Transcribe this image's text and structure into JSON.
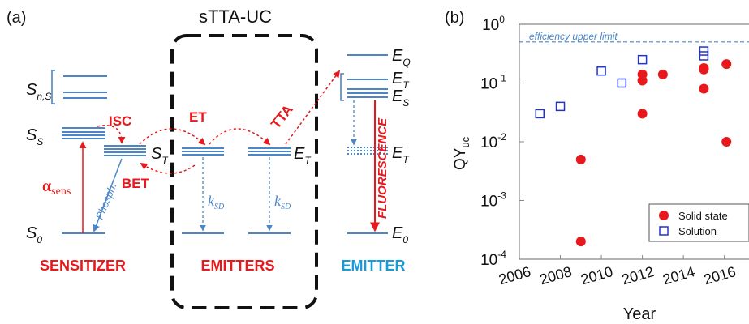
{
  "panel_a": {
    "label": "(a)",
    "box_title": "sTTA-UC",
    "sensitizer": {
      "caption": "SENSITIZER",
      "level_Sn": "S",
      "level_Sn_sub": "n,S",
      "level_SS": "S",
      "level_SS_sub": "S",
      "level_ST": "S",
      "level_ST_sub": "T",
      "level_S0": "S",
      "level_S0_sub": "0"
    },
    "emitters": {
      "caption": "EMITTERS",
      "ksd": "k",
      "ksd_sub": "SD",
      "ET_label": "E",
      "ET_sub": "T"
    },
    "emitter": {
      "caption": "EMITTER",
      "EQ": "E",
      "EQ_sub": "Q",
      "ET": "E",
      "ET_sub": "T",
      "ES": "E",
      "ES_sub": "S",
      "ET2": "E",
      "ET2_sub": "T",
      "E0": "E",
      "E0_sub": "0"
    },
    "arrows": {
      "isc": "ISC",
      "et": "ET",
      "tta": "TTA",
      "bet": "BET",
      "alpha": "α",
      "alpha_sub": "sens",
      "phosph": "Phosph.",
      "fluorescence": "FLUORESCENCE"
    },
    "colors": {
      "red": "#e8191c",
      "blue": "#4a86c8",
      "cyan": "#1a9ad6",
      "black": "#111111"
    }
  },
  "chart_data": {
    "panel_label": "(b)",
    "type": "scatter",
    "title": "",
    "xlabel": "Year",
    "ylabel": "QY",
    "ylabel_sub": "uc",
    "xlim": [
      2006,
      2017.2
    ],
    "ylim_log10": [
      -4,
      0
    ],
    "yscale": "log",
    "x_ticks": [
      "2006",
      "2008",
      "2010",
      "2012",
      "2014",
      "2016"
    ],
    "y_ticks": [
      {
        "base": "10",
        "exp": "0"
      },
      {
        "base": "10",
        "exp": "-1"
      },
      {
        "base": "10",
        "exp": "-2"
      },
      {
        "base": "10",
        "exp": "-3"
      },
      {
        "base": "10",
        "exp": "-4"
      }
    ],
    "reference_line": {
      "label": "efficiency upper limit",
      "y": 0.5
    },
    "legend_position": "bottom-right",
    "series": [
      {
        "name": "Solid state",
        "marker": "filled-circle",
        "color": "#e8191c",
        "points": [
          [
            2009,
            0.005
          ],
          [
            2009,
            0.0002
          ],
          [
            2012,
            0.14
          ],
          [
            2012,
            0.11
          ],
          [
            2012,
            0.03
          ],
          [
            2013,
            0.14
          ],
          [
            2015,
            0.18
          ],
          [
            2015,
            0.17
          ],
          [
            2015,
            0.08
          ],
          [
            2016.1,
            0.21
          ],
          [
            2016.1,
            0.01
          ]
        ]
      },
      {
        "name": "Solution",
        "marker": "open-square",
        "color": "#2233cc",
        "points": [
          [
            2007,
            0.03
          ],
          [
            2008,
            0.04
          ],
          [
            2010,
            0.16
          ],
          [
            2011,
            0.1
          ],
          [
            2012,
            0.25
          ],
          [
            2015,
            0.35
          ],
          [
            2015,
            0.29
          ]
        ]
      }
    ]
  }
}
